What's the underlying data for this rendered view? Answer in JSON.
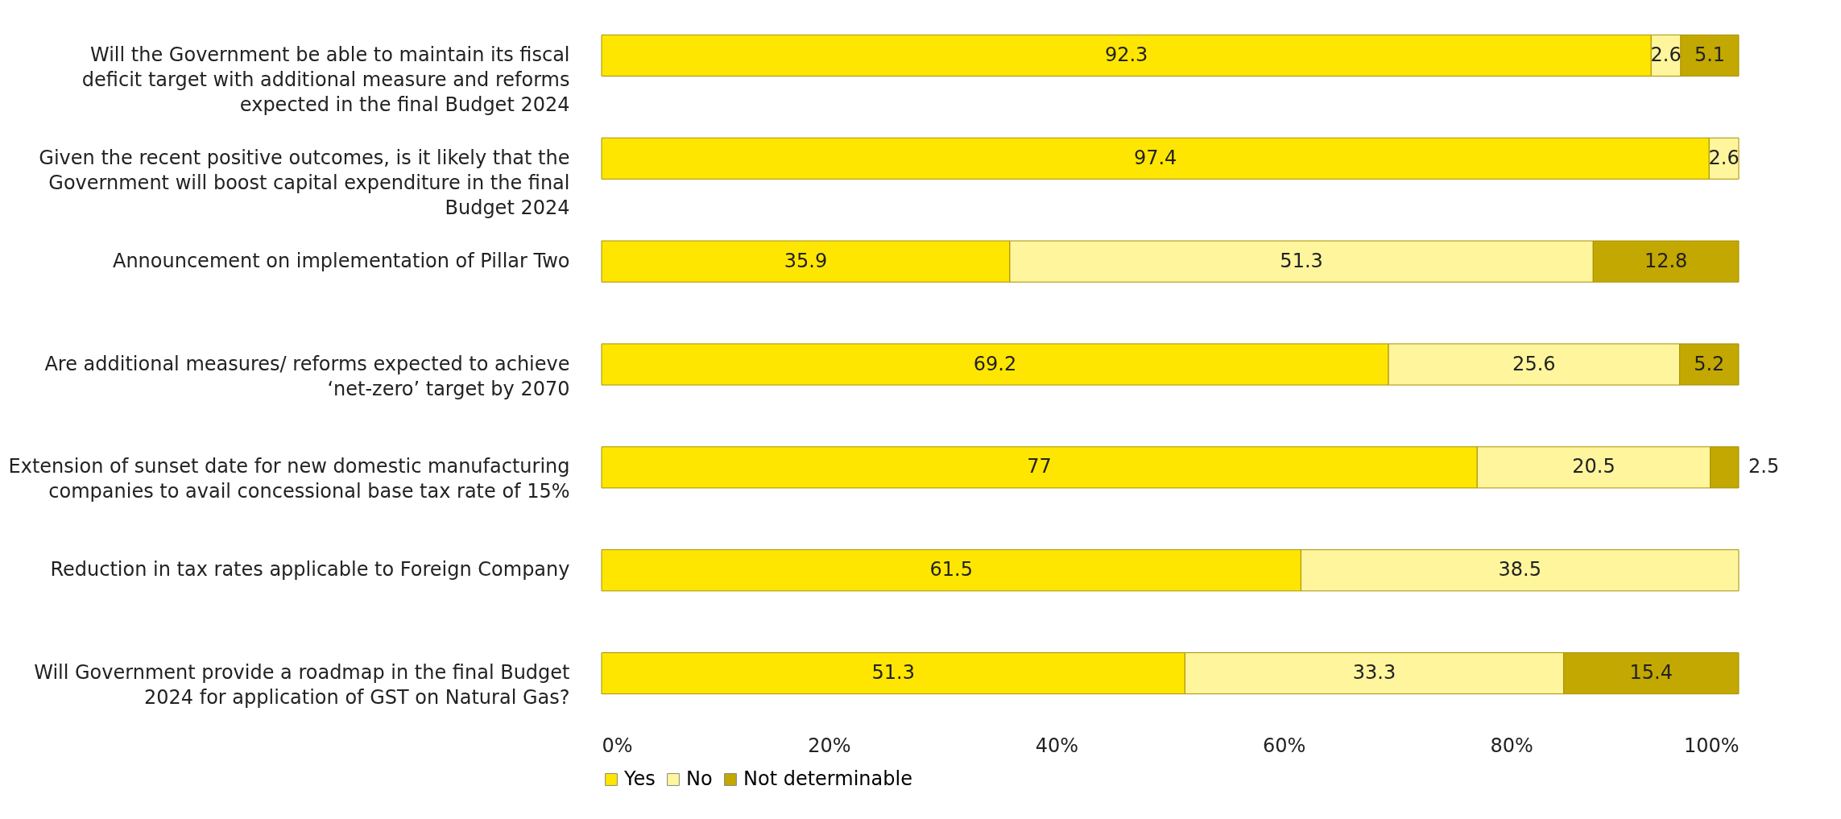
{
  "chart_data": {
    "type": "bar",
    "orientation": "horizontal",
    "stacked": true,
    "data_labels": true,
    "grid": false,
    "legend": "bottom",
    "categories": [
      "Will the Government be able to maintain its fiscal deficit target with additional measure and reforms expected in the final Budget 2024",
      "Given the recent positive outcomes, is it likely that the Government will boost capital expenditure in the final Budget 2024",
      "Announcement on implementation of Pillar Two",
      "Are additional measures/ reforms expected to achieve ‘net-zero’ target by 2070",
      "Extension of sunset date for new domestic manufacturing companies to avail concessional base tax rate of 15%",
      "Reduction in tax rates applicable to Foreign Company",
      "Will Government provide a roadmap in the final Budget 2024 for application of GST on Natural Gas?"
    ],
    "series": [
      {
        "name": "Yes",
        "color": "#ffe600",
        "values": [
          92.3,
          97.4,
          35.9,
          69.2,
          77,
          61.5,
          51.3
        ]
      },
      {
        "name": "No",
        "color": "#fff59d",
        "values": [
          2.6,
          2.6,
          51.3,
          25.6,
          20.5,
          38.5,
          33.3
        ]
      },
      {
        "name": "Not determinable",
        "color": "#c2a800",
        "values": [
          5.1,
          null,
          12.8,
          5.2,
          2.5,
          null,
          15.4
        ]
      }
    ],
    "xlim": [
      0,
      100
    ],
    "xticks": [
      {
        "value": 0,
        "label": "0%"
      },
      {
        "value": 20,
        "label": "20%"
      },
      {
        "value": 40,
        "label": "40%"
      },
      {
        "value": 60,
        "label": "60%"
      },
      {
        "value": 80,
        "label": "80%"
      },
      {
        "value": 100,
        "label": "100%"
      }
    ]
  }
}
